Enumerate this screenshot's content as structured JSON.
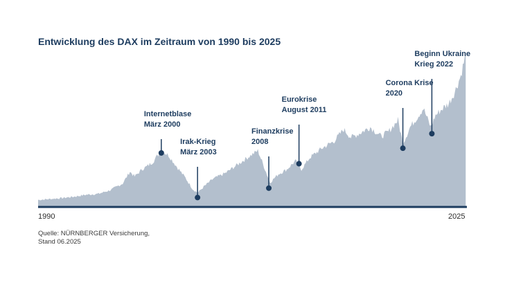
{
  "title": "Entwicklung des DAX im Zeitraum von 1990 bis 2025",
  "source": {
    "line1": "Quelle: NÜRNBERGER Versicherung,",
    "line2": "Stand 06.2025"
  },
  "colors": {
    "area": "#b3bfcd",
    "axis": "#1d3c5f",
    "marker": "#1d3c5f",
    "text": "#1d3c5f"
  },
  "chart_data": {
    "type": "area",
    "title": "Entwicklung des DAX im Zeitraum von 1990 bis 2025",
    "xlabel": "",
    "ylabel": "",
    "xlim": [
      1990,
      2025.5
    ],
    "x_tick_labels": [
      "1990",
      "2025"
    ],
    "y_axis_labels": "none",
    "x": [
      1990,
      1991,
      1992,
      1993,
      1994,
      1995,
      1996,
      1997,
      1997.6,
      1998,
      1998.6,
      1999,
      1999.5,
      2000.2,
      2000.8,
      2001.5,
      2002.2,
      2002.8,
      2003.2,
      2003.8,
      2004.5,
      2005.5,
      2006.5,
      2007.5,
      2008.2,
      2009.2,
      2009.9,
      2010.6,
      2011.3,
      2011.8,
      2012.5,
      2013.5,
      2014.5,
      2015.3,
      2015.9,
      2016.5,
      2017.5,
      2018.4,
      2019,
      2019.8,
      2020.2,
      2020.8,
      2021.5,
      2021.9,
      2022.5,
      2022.9,
      2023.5,
      2024,
      2024.5,
      2025,
      2025.4
    ],
    "values": [
      1.5,
      1.7,
      1.9,
      2.2,
      2.6,
      2.8,
      3.6,
      5.0,
      7.5,
      6.5,
      8.0,
      8.6,
      9.6,
      12.0,
      11.0,
      8.5,
      6.2,
      3.8,
      3.0,
      4.5,
      6.0,
      7.2,
      9.0,
      10.8,
      12.0,
      5.2,
      7.0,
      8.0,
      9.8,
      8.0,
      10.5,
      12.5,
      14.0,
      16.5,
      14.8,
      15.5,
      17.0,
      15.0,
      16.0,
      18.5,
      13.5,
      17.0,
      19.5,
      21.0,
      17.0,
      19.5,
      21.0,
      22.0,
      24.5,
      28.0,
      32.5
    ],
    "annotations": [
      {
        "label": [
          "Internetblase",
          "März 2000"
        ],
        "x": 2000.2,
        "y": 11.5
      },
      {
        "label": [
          "Irak-Krieg",
          "März 2003"
        ],
        "x": 2003.2,
        "y": 2.0
      },
      {
        "label": [
          "Finanzkrise",
          "2008"
        ],
        "x": 2009.1,
        "y": 4.0
      },
      {
        "label": [
          "Eurokrise",
          "August 2011"
        ],
        "x": 2011.6,
        "y": 9.2
      },
      {
        "label": [
          "Corona Krise",
          "2020"
        ],
        "x": 2020.2,
        "y": 12.5
      },
      {
        "label": [
          "Beginn Ukraine",
          "Krieg 2022"
        ],
        "x": 2022.6,
        "y": 15.6
      }
    ]
  }
}
